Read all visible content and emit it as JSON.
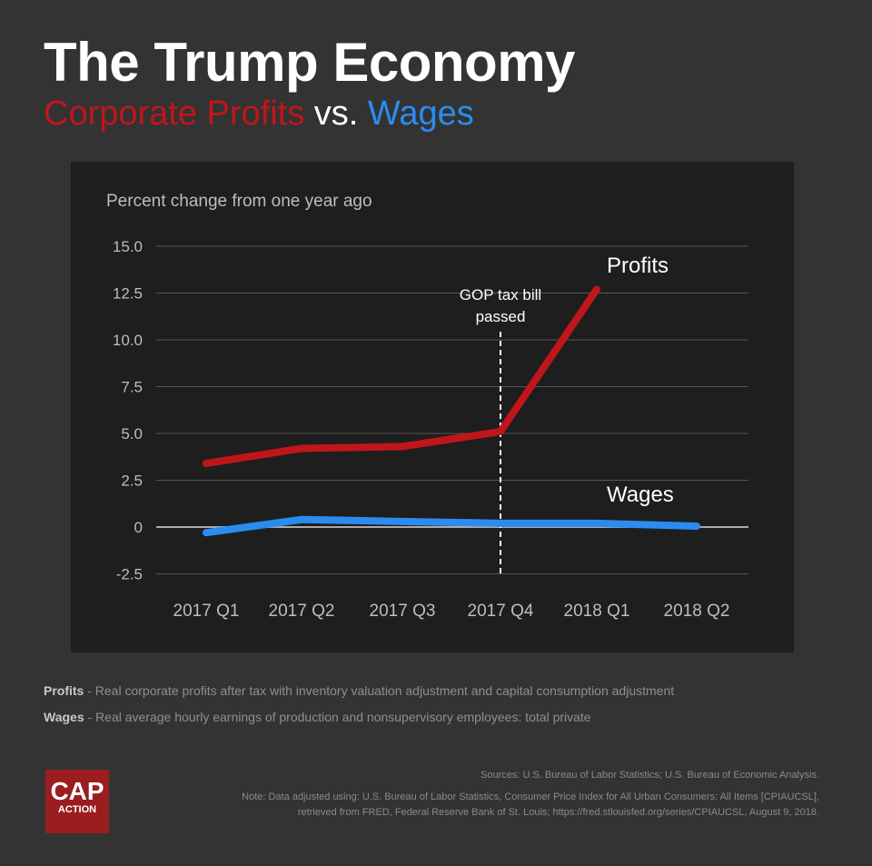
{
  "title": "The Trump Economy",
  "subtitle": {
    "profits": "Corporate Profits",
    "vs": "vs.",
    "wages": "Wages"
  },
  "chart_data": {
    "type": "line",
    "ylabel": "Percent change from one year ago",
    "categories": [
      "2017 Q1",
      "2017 Q2",
      "2017 Q3",
      "2017 Q4",
      "2018 Q1",
      "2018 Q2"
    ],
    "yticks": [
      "15.0",
      "12.5",
      "10.0",
      "7.5",
      "5.0",
      "2.5",
      "0",
      "-2.5"
    ],
    "ylim": [
      -2.5,
      15
    ],
    "series": [
      {
        "name": "Profits",
        "color": "#c0161b",
        "values": [
          3.4,
          4.2,
          4.3,
          5.1,
          12.7,
          null
        ]
      },
      {
        "name": "Wages",
        "color": "#2a8cf0",
        "values": [
          -0.3,
          0.4,
          0.3,
          0.2,
          0.2,
          0.05
        ]
      }
    ],
    "annotation": {
      "text1": "GOP tax bill",
      "text2": "passed",
      "at": "2017 Q4"
    }
  },
  "notes": {
    "profits_label": "Profits",
    "profits_text": " - Real corporate profits after tax with inventory valuation adjustment and capital consumption adjustment",
    "wages_label": "Wages",
    "wages_text": " - Real average hourly earnings of production and nonsupervisory employees: total private"
  },
  "sources": "Sources: U.S. Bureau of Labor Statistics; U.S. Bureau of Economic Analysis.",
  "note1": "Note: Data adjusted using: U.S. Bureau of Labor Statistics, Consumer Price Index for All Urban Consumers: All Items [CPIAUCSL],",
  "note2": "retrieved from FRED, Federal Reserve Bank of St. Louis; https://fred.stlouisfed.org/series/CPIAUCSL, August 9, 2018.",
  "logo": {
    "top": "CAP",
    "bottom": "ACTION"
  }
}
